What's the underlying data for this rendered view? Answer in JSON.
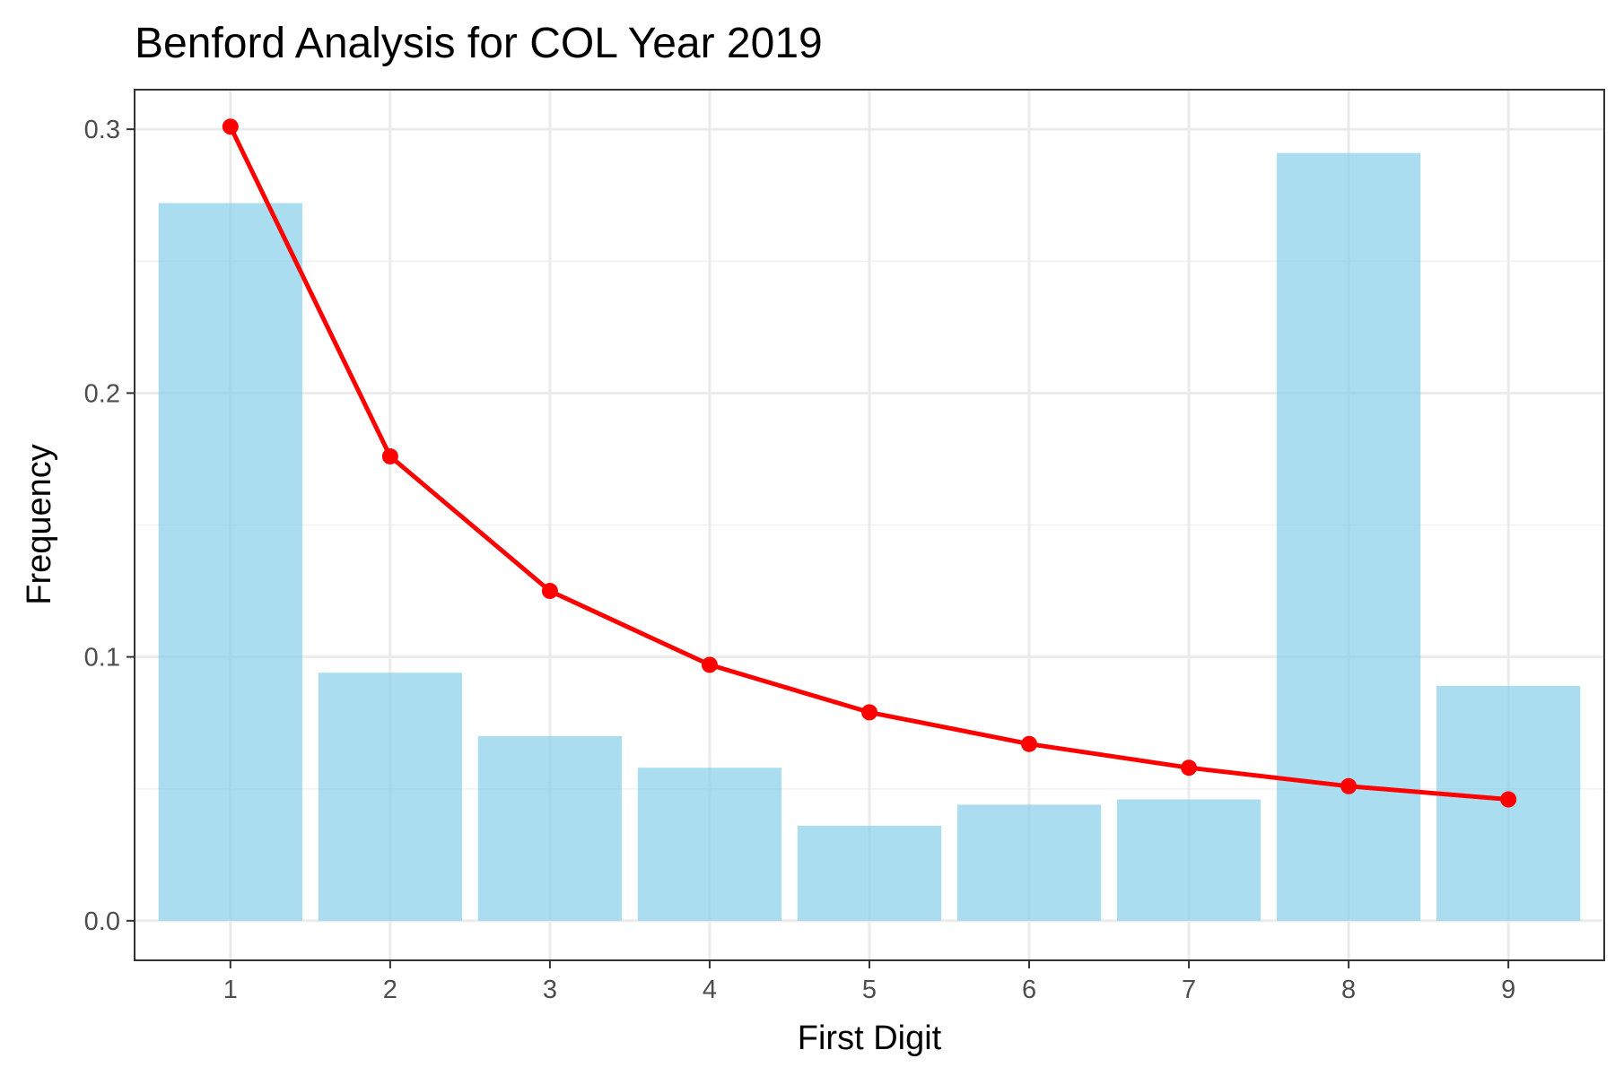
{
  "chart_data": {
    "type": "bar",
    "title": "Benford Analysis for COL Year 2019",
    "xlabel": "First Digit",
    "ylabel": "Frequency",
    "categories": [
      "1",
      "2",
      "3",
      "4",
      "5",
      "6",
      "7",
      "8",
      "9"
    ],
    "ylim": [
      -0.015,
      0.315
    ],
    "yticks": [
      0.0,
      0.1,
      0.2,
      0.3
    ],
    "ytick_labels": [
      "0.0",
      "0.1",
      "0.2",
      "0.3"
    ],
    "grid": true,
    "legend": "none",
    "series": [
      {
        "kind": "bar",
        "values": [
          0.272,
          0.094,
          0.07,
          0.058,
          0.036,
          0.044,
          0.046,
          0.291,
          0.089
        ],
        "color": "#87ceeb"
      },
      {
        "kind": "line",
        "values": [
          0.301,
          0.176,
          0.125,
          0.097,
          0.079,
          0.067,
          0.058,
          0.051,
          0.046
        ],
        "color": "#ff0000"
      }
    ]
  }
}
